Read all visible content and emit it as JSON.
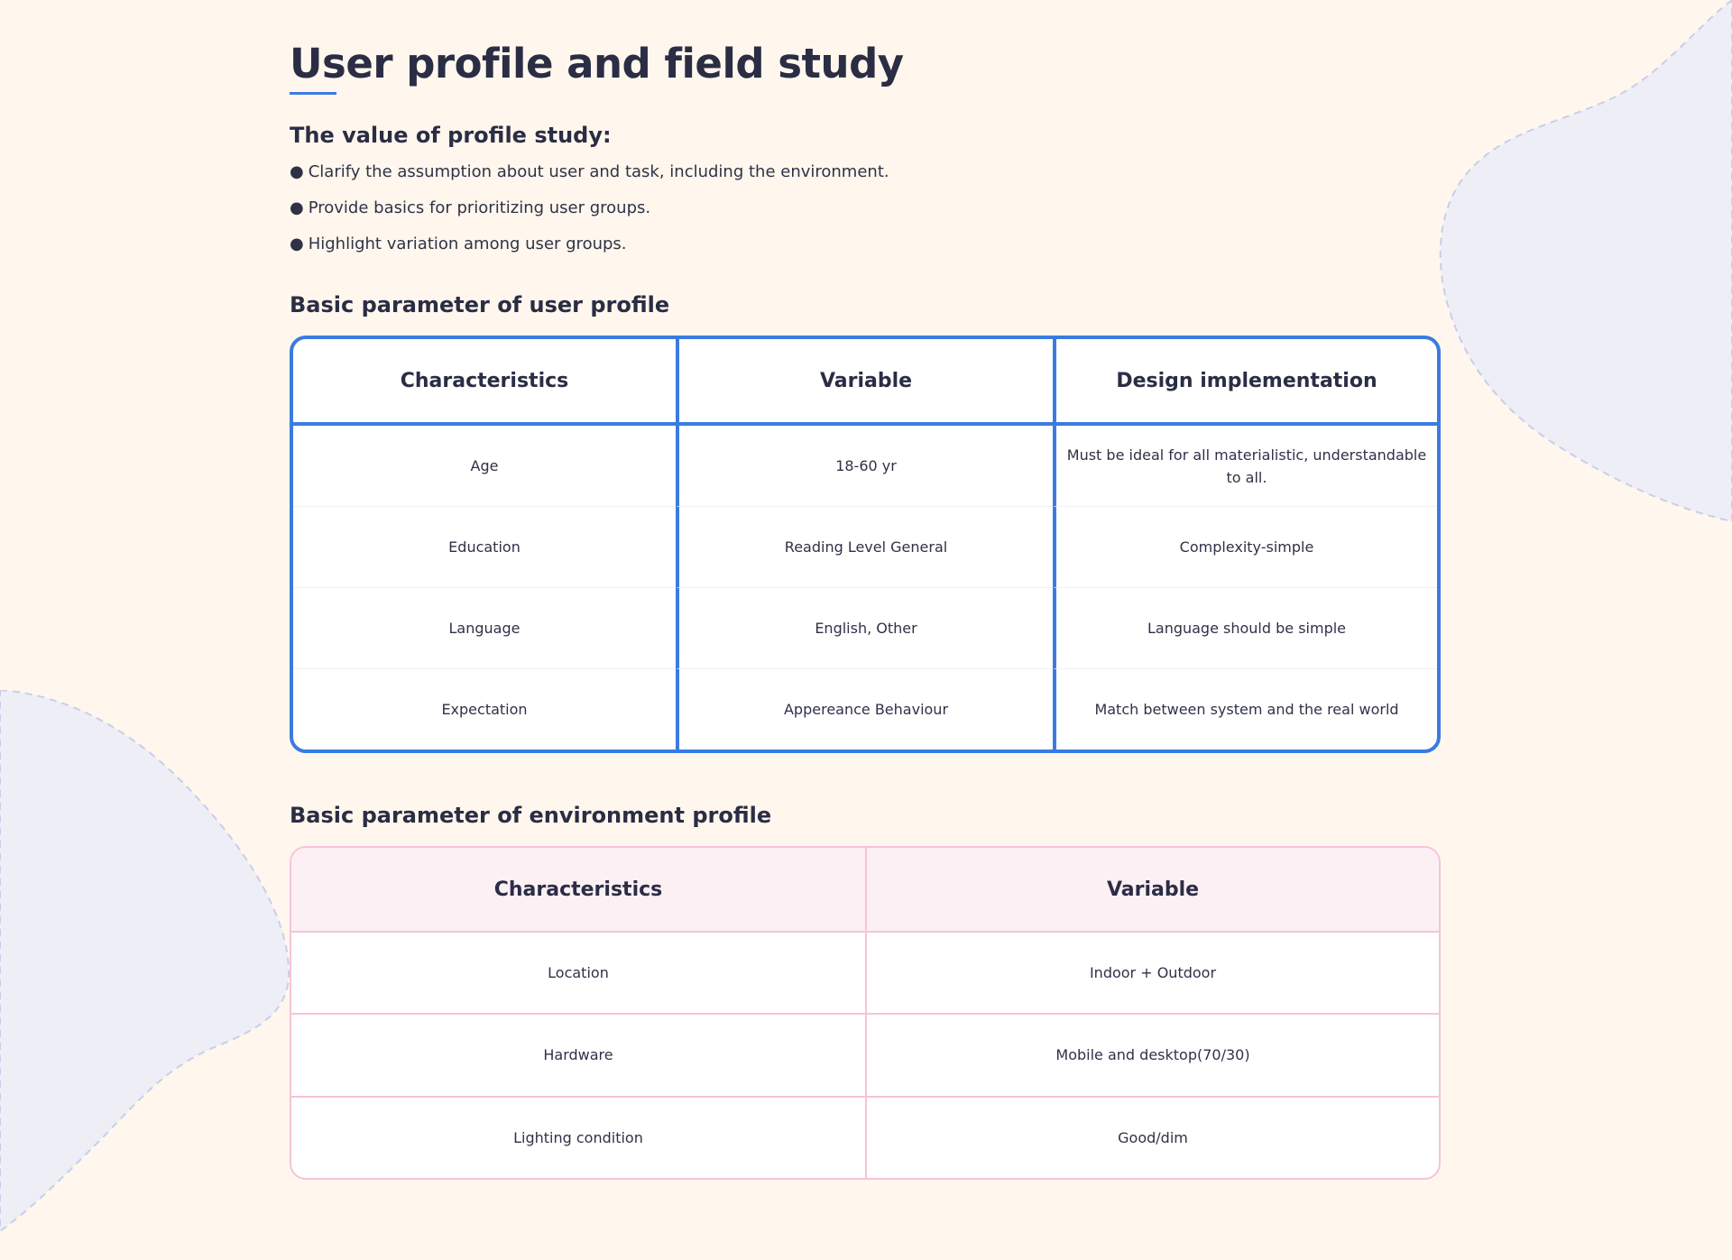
{
  "page": {
    "title": "User profile and field study",
    "accent_color": "#3b7be0",
    "background_color": "#fff7ed"
  },
  "profile_value": {
    "heading": "The value of profile study:",
    "bullet_glyph": "●",
    "items": [
      "Clarify the assumption about user and task, including the environment.",
      "Provide basics for prioritizing user groups.",
      "Highlight variation among user groups."
    ]
  },
  "user_profile": {
    "heading": "Basic parameter of user profile",
    "border_color": "#3b7be0",
    "columns": [
      "Characteristics",
      "Variable",
      "Design implementation"
    ],
    "rows": [
      [
        "Age",
        "18-60 yr",
        "Must be ideal for all materialistic, understandable to all."
      ],
      [
        "Education",
        "Reading Level General",
        "Complexity-simple"
      ],
      [
        "Language",
        "English, Other",
        "Language should be simple"
      ],
      [
        "Expectation",
        "Appereance Behaviour",
        "Match between system and the real world"
      ]
    ]
  },
  "environment_profile": {
    "heading": "Basic parameter of environment profile",
    "border_color": "#f6c3da",
    "header_background": "#fdf0f5",
    "columns": [
      "Characteristics",
      "Variable"
    ],
    "rows": [
      [
        "Location",
        "Indoor + Outdoor"
      ],
      [
        "Hardware",
        "Mobile and desktop(70/30)"
      ],
      [
        "Lighting condition",
        "Good/dim"
      ]
    ]
  }
}
